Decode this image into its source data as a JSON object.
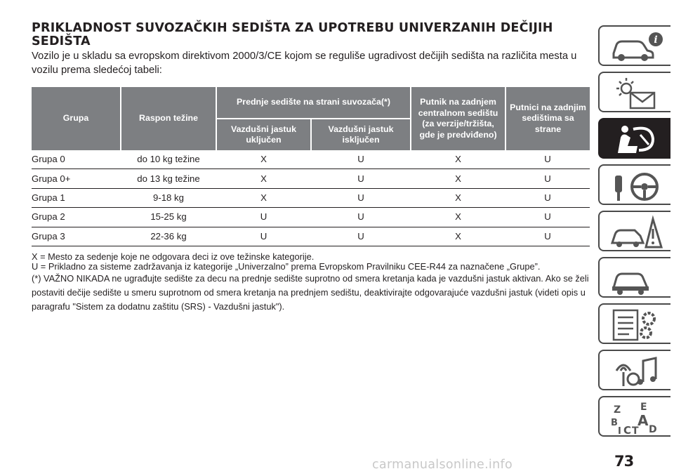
{
  "heading": "PRIKLADNOST SUVOZAČKIH SEDIŠTA ZA UPOTREBU UNIVERZANIH DEČIJIH SEDIŠTA",
  "intro": "Vozilo je u skladu sa evropskom direktivom 2000/3/CE kojom se reguliše ugradivost dečijih sedišta na različita mesta u vozilu prema sledećoj tabeli:",
  "table": {
    "headers": {
      "group": "Grupa",
      "weight": "Raspon težine",
      "front_passenger": "Prednje sedište na strani suvozača(*)",
      "airbag_on": "Vazdušni jastuk uključen",
      "airbag_off": "Vazdušni jastuk isključen",
      "rear_center": "Putnik na zadnjem centralnom sedištu (za verzije/tržišta, gde je predviđeno)",
      "rear_side": "Putnici na zadnjim sedištima sa strane"
    },
    "rows": [
      {
        "group": "Grupa 0",
        "weight": "do 10 kg težine",
        "on": "X",
        "off": "U",
        "center": "X",
        "side": "U"
      },
      {
        "group": "Grupa 0+",
        "weight": "do 13 kg težine",
        "on": "X",
        "off": "U",
        "center": "X",
        "side": "U"
      },
      {
        "group": "Grupa 1",
        "weight": "9-18 kg",
        "on": "X",
        "off": "U",
        "center": "X",
        "side": "U"
      },
      {
        "group": "Grupa 2",
        "weight": "15-25 kg",
        "on": "U",
        "off": "U",
        "center": "X",
        "side": "U"
      },
      {
        "group": "Grupa 3",
        "weight": "22-36 kg",
        "on": "U",
        "off": "U",
        "center": "X",
        "side": "U"
      }
    ]
  },
  "notes": {
    "x_note": "X = Mesto za sedenje koje ne odgovara deci iz ove težinske kategorije.",
    "u_note": "U = Prikladno za sisteme zadržavanja iz kategorije „Univerzalno” prema Evropskom Pravilniku CEE-R44 za naznačene „Grupe”.",
    "warning": "(*) VAŽNO NIKADA ne ugrađujte sedište za decu na prednje sedište suprotno od smera kretanja kada je vazdušni jastuk aktivan. Ako se želi postaviti dečije sedište u smeru suprotnom od smera kretanja na prednjem sedištu, deaktivirajte odgovarajuće vazdušni jastuk (videti opis u paragrafu \"Sistem za dodatnu zaštitu (SRS) - Vazdušni jastuk\")."
  },
  "side_tabs": [
    {
      "icon": "car-info-icon"
    },
    {
      "icon": "warning-lights-icon"
    },
    {
      "icon": "seat-airbag-icon",
      "active": true
    },
    {
      "icon": "key-steering-wheel-icon"
    },
    {
      "icon": "car-accident-icon"
    },
    {
      "icon": "car-service-icon"
    },
    {
      "icon": "specs-gears-icon"
    },
    {
      "icon": "multimedia-icon"
    },
    {
      "icon": "alphabet-index-icon",
      "letters": [
        "Z",
        "E",
        "B",
        "A",
        "I",
        "C",
        "T",
        "D"
      ]
    }
  ],
  "page_number": "73",
  "watermark": "carmanualsonline.info"
}
